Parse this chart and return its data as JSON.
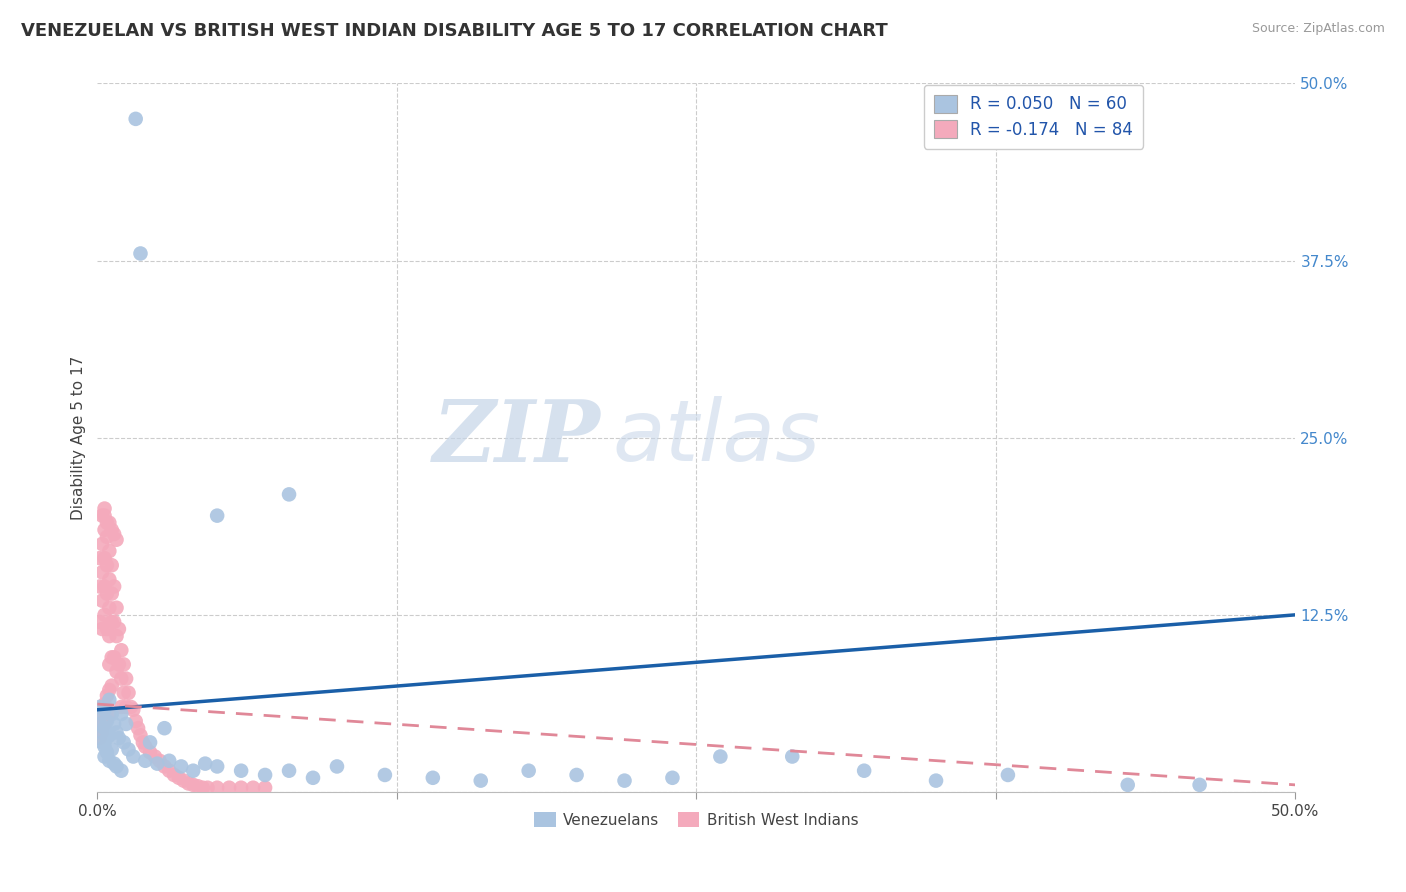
{
  "title": "VENEZUELAN VS BRITISH WEST INDIAN DISABILITY AGE 5 TO 17 CORRELATION CHART",
  "source": "Source: ZipAtlas.com",
  "ylabel": "Disability Age 5 to 17",
  "xlim": [
    0.0,
    0.5
  ],
  "ylim": [
    0.0,
    0.5
  ],
  "grid_color": "#cccccc",
  "background_color": "#ffffff",
  "venezuelan_color": "#aac4e0",
  "bwi_color": "#f4aabc",
  "trend_blue_color": "#1a5fa8",
  "trend_pink_color": "#e08898",
  "watermark_text1": "ZIP",
  "watermark_text2": "atlas",
  "legend_label1": "R = 0.050   N = 60",
  "legend_label2": "R = -0.174   N = 84",
  "venezuelan_x": [
    0.001,
    0.001,
    0.002,
    0.002,
    0.002,
    0.003,
    0.003,
    0.003,
    0.003,
    0.004,
    0.004,
    0.004,
    0.005,
    0.005,
    0.005,
    0.006,
    0.006,
    0.007,
    0.007,
    0.008,
    0.008,
    0.009,
    0.01,
    0.01,
    0.011,
    0.012,
    0.013,
    0.015,
    0.016,
    0.018,
    0.02,
    0.022,
    0.025,
    0.028,
    0.03,
    0.035,
    0.04,
    0.045,
    0.05,
    0.06,
    0.07,
    0.08,
    0.09,
    0.1,
    0.12,
    0.14,
    0.16,
    0.18,
    0.2,
    0.22,
    0.24,
    0.26,
    0.29,
    0.32,
    0.35,
    0.38,
    0.05,
    0.08,
    0.43,
    0.46
  ],
  "venezuelan_y": [
    0.06,
    0.048,
    0.055,
    0.042,
    0.035,
    0.058,
    0.045,
    0.032,
    0.025,
    0.05,
    0.038,
    0.028,
    0.065,
    0.04,
    0.022,
    0.055,
    0.03,
    0.048,
    0.02,
    0.042,
    0.018,
    0.038,
    0.055,
    0.015,
    0.035,
    0.048,
    0.03,
    0.025,
    0.475,
    0.38,
    0.022,
    0.035,
    0.02,
    0.045,
    0.022,
    0.018,
    0.015,
    0.02,
    0.018,
    0.015,
    0.012,
    0.015,
    0.01,
    0.018,
    0.012,
    0.01,
    0.008,
    0.015,
    0.012,
    0.008,
    0.01,
    0.025,
    0.025,
    0.015,
    0.008,
    0.012,
    0.195,
    0.21,
    0.005,
    0.005
  ],
  "bwi_x": [
    0.001,
    0.001,
    0.001,
    0.002,
    0.002,
    0.002,
    0.002,
    0.003,
    0.003,
    0.003,
    0.003,
    0.003,
    0.004,
    0.004,
    0.004,
    0.004,
    0.005,
    0.005,
    0.005,
    0.005,
    0.005,
    0.006,
    0.006,
    0.006,
    0.006,
    0.007,
    0.007,
    0.007,
    0.008,
    0.008,
    0.008,
    0.009,
    0.009,
    0.01,
    0.01,
    0.01,
    0.011,
    0.011,
    0.012,
    0.012,
    0.013,
    0.014,
    0.015,
    0.016,
    0.017,
    0.018,
    0.019,
    0.02,
    0.022,
    0.024,
    0.026,
    0.028,
    0.03,
    0.032,
    0.034,
    0.036,
    0.038,
    0.04,
    0.042,
    0.044,
    0.046,
    0.05,
    0.055,
    0.06,
    0.065,
    0.07,
    0.001,
    0.001,
    0.002,
    0.002,
    0.003,
    0.003,
    0.004,
    0.004,
    0.005,
    0.005,
    0.006,
    0.002,
    0.003,
    0.004,
    0.005,
    0.006,
    0.007,
    0.008
  ],
  "bwi_y": [
    0.165,
    0.145,
    0.12,
    0.175,
    0.155,
    0.135,
    0.115,
    0.2,
    0.185,
    0.165,
    0.145,
    0.125,
    0.18,
    0.16,
    0.14,
    0.115,
    0.17,
    0.15,
    0.13,
    0.11,
    0.09,
    0.16,
    0.14,
    0.12,
    0.095,
    0.145,
    0.12,
    0.095,
    0.13,
    0.11,
    0.085,
    0.115,
    0.09,
    0.1,
    0.08,
    0.06,
    0.09,
    0.07,
    0.08,
    0.06,
    0.07,
    0.06,
    0.058,
    0.05,
    0.045,
    0.04,
    0.035,
    0.032,
    0.028,
    0.025,
    0.022,
    0.018,
    0.015,
    0.012,
    0.01,
    0.008,
    0.006,
    0.005,
    0.004,
    0.003,
    0.003,
    0.003,
    0.003,
    0.003,
    0.003,
    0.003,
    0.048,
    0.038,
    0.055,
    0.042,
    0.062,
    0.048,
    0.068,
    0.052,
    0.072,
    0.055,
    0.075,
    0.195,
    0.195,
    0.19,
    0.19,
    0.185,
    0.182,
    0.178
  ],
  "trend_ven_x0": 0.0,
  "trend_ven_y0": 0.058,
  "trend_ven_x1": 0.5,
  "trend_ven_y1": 0.125,
  "trend_bwi_x0": 0.0,
  "trend_bwi_y0": 0.062,
  "trend_bwi_x1": 0.5,
  "trend_bwi_y1": 0.005
}
